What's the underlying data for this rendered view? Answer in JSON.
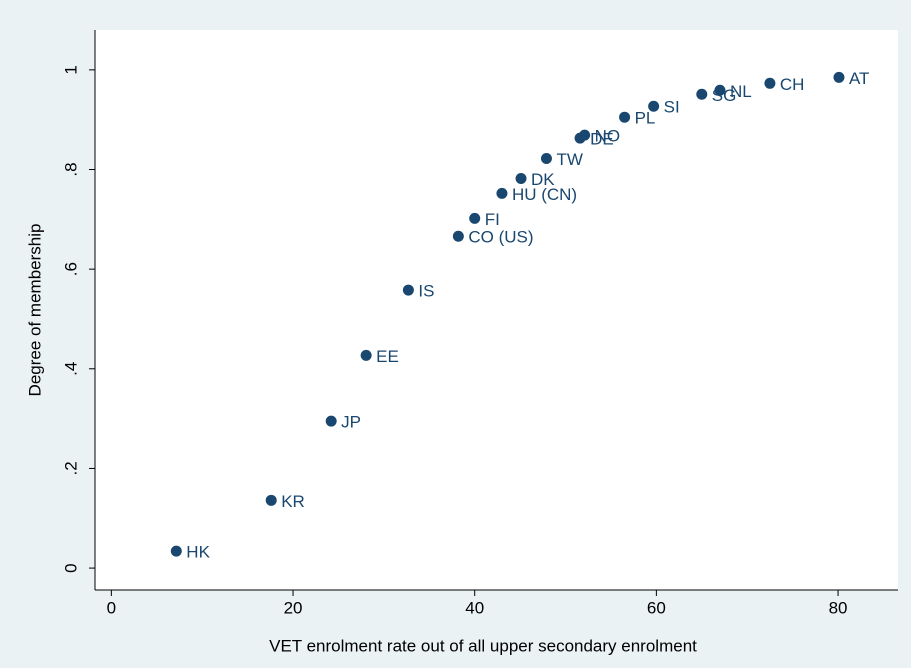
{
  "chart_data": {
    "type": "scatter",
    "xlabel": "VET enrolment rate out of all upper secondary enrolment",
    "ylabel": "Degree of membership",
    "labels": [
      "HK",
      "KR",
      "JP",
      "EE",
      "IS",
      "CO (US)",
      "FI",
      "HU (CN)",
      "DK",
      "TW",
      "DE",
      "NO",
      "PL",
      "SI",
      "SG",
      "NL",
      "CH",
      "AT"
    ],
    "x": [
      7.15,
      17.6,
      24.2,
      28.05,
      32.7,
      38.2,
      40.0,
      43.0,
      45.1,
      47.9,
      51.6,
      52.1,
      56.5,
      59.7,
      65.0,
      67.0,
      72.5,
      80.1
    ],
    "values": [
      0.034,
      0.136,
      0.295,
      0.427,
      0.558,
      0.666,
      0.702,
      0.752,
      0.782,
      0.822,
      0.863,
      0.869,
      0.905,
      0.927,
      0.951,
      0.959,
      0.973,
      0.985
    ],
    "color": "#1a476f",
    "xlim": [
      -1.8,
      86.6
    ],
    "xticks": [
      0,
      20,
      40,
      60,
      80
    ],
    "ylim": [
      -0.044,
      1.08
    ],
    "yticks": [
      0,
      {
        "value": 0.2,
        "label": ".2"
      },
      {
        "value": 0.4,
        "label": ".4"
      },
      {
        "value": 0.6,
        "label": ".6"
      },
      {
        "value": 0.8,
        "label": ".8"
      },
      1
    ],
    "grid": false
  }
}
